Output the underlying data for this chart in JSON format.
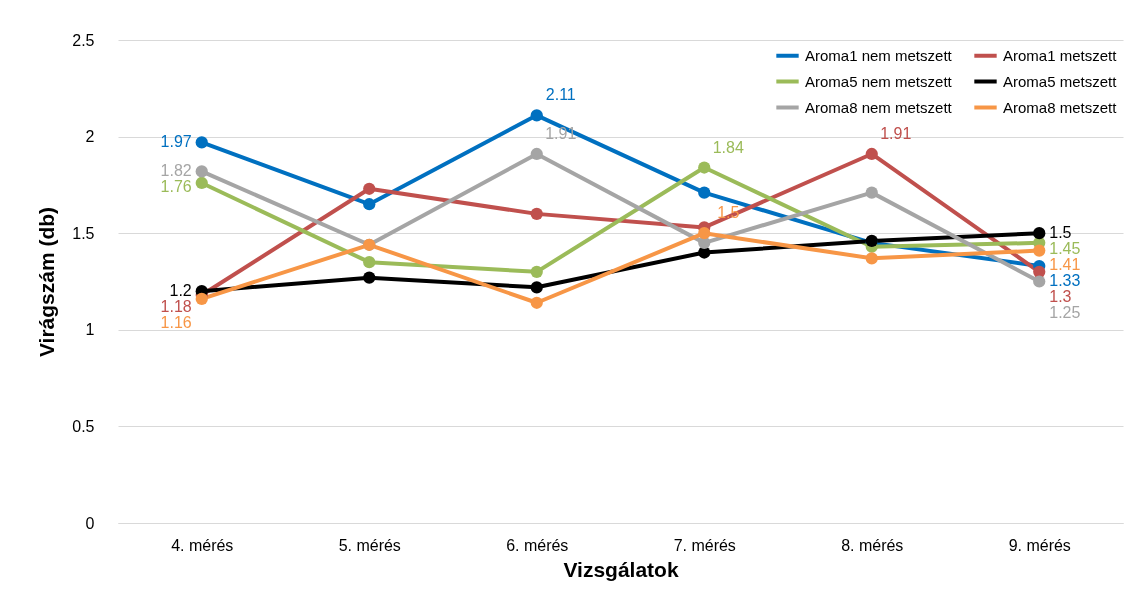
{
  "chart_data": {
    "type": "line",
    "xlabel": "Vizsgálatok",
    "ylabel": "Virágszám (db)",
    "categories": [
      "4. mérés",
      "5. mérés",
      "6. mérés",
      "7. mérés",
      "8. mérés",
      "9. mérés"
    ],
    "series": [
      {
        "name": "Aroma1 nem metszett",
        "color": "#0070c0",
        "values": [
          1.97,
          1.65,
          2.11,
          1.71,
          1.45,
          1.33
        ],
        "value_labels": [
          "1.97",
          null,
          "2.11",
          null,
          null,
          "1.33"
        ]
      },
      {
        "name": "Aroma1 metszett",
        "color": "#c0504d",
        "values": [
          1.18,
          1.73,
          1.6,
          1.53,
          1.91,
          1.3
        ],
        "value_labels": [
          "1.18",
          null,
          null,
          null,
          "1.91",
          "1.3"
        ]
      },
      {
        "name": "Aroma5 nem metszett",
        "color": "#9bbb59",
        "values": [
          1.76,
          1.35,
          1.3,
          1.84,
          1.43,
          1.45
        ],
        "value_labels": [
          "1.76",
          null,
          null,
          "1.84",
          null,
          "1.45"
        ]
      },
      {
        "name": "Aroma5  metszett",
        "color": "#000000",
        "values": [
          1.2,
          1.27,
          1.22,
          1.4,
          1.46,
          1.5
        ],
        "value_labels": [
          "1.2",
          null,
          null,
          null,
          null,
          "1.5"
        ]
      },
      {
        "name": "Aroma8 nem metszett",
        "color": "#a5a5a5",
        "values": [
          1.82,
          1.44,
          1.91,
          1.45,
          1.71,
          1.25
        ],
        "value_labels": [
          "1.82",
          null,
          "1.91",
          null,
          null,
          "1.25"
        ]
      },
      {
        "name": "Aroma8  metszett",
        "color": "#f79646",
        "values": [
          1.16,
          1.44,
          1.14,
          1.5,
          1.37,
          1.41
        ],
        "value_labels": [
          "1.16",
          null,
          null,
          "1.5",
          null,
          "1.41"
        ]
      }
    ],
    "ylim": [
      0,
      2.5
    ],
    "yticks": [
      0,
      0.5,
      1,
      1.5,
      2,
      2.5
    ],
    "grid": "y",
    "legend": "top right",
    "marker": "circle",
    "line_style": "solid"
  }
}
